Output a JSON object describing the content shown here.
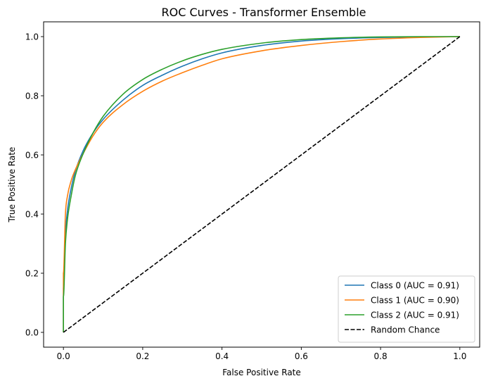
{
  "chart_data": {
    "type": "line",
    "title": "ROC Curves - Transformer Ensemble",
    "xlabel": "False Positive Rate",
    "ylabel": "True Positive Rate",
    "xlim": [
      -0.05,
      1.05
    ],
    "ylim": [
      -0.05,
      1.05
    ],
    "xticks": [
      0.0,
      0.2,
      0.4,
      0.6,
      0.8,
      1.0
    ],
    "yticks": [
      0.0,
      0.2,
      0.4,
      0.6,
      0.8,
      1.0
    ],
    "xtick_labels": [
      "0.0",
      "0.2",
      "0.4",
      "0.6",
      "0.8",
      "1.0"
    ],
    "ytick_labels": [
      "0.0",
      "0.2",
      "0.4",
      "0.6",
      "0.8",
      "1.0"
    ],
    "grid": false,
    "legend_position": "lower-right",
    "series": [
      {
        "name": "Class 0 (AUC = 0.91)",
        "color": "#1f77b4",
        "style": "solid",
        "x": [
          0.0,
          0.0,
          0.005,
          0.01,
          0.02,
          0.03,
          0.05,
          0.075,
          0.1,
          0.15,
          0.2,
          0.25,
          0.3,
          0.35,
          0.4,
          0.5,
          0.6,
          0.7,
          0.8,
          0.9,
          1.0
        ],
        "y": [
          0.0,
          0.15,
          0.33,
          0.41,
          0.49,
          0.545,
          0.615,
          0.675,
          0.72,
          0.785,
          0.835,
          0.87,
          0.9,
          0.925,
          0.945,
          0.97,
          0.985,
          0.993,
          0.997,
          0.999,
          1.0
        ]
      },
      {
        "name": "Class 1 (AUC = 0.90)",
        "color": "#ff7f0e",
        "style": "solid",
        "x": [
          0.0,
          0.0,
          0.005,
          0.01,
          0.02,
          0.03,
          0.05,
          0.075,
          0.1,
          0.15,
          0.2,
          0.25,
          0.3,
          0.35,
          0.4,
          0.5,
          0.6,
          0.7,
          0.8,
          0.9,
          1.0
        ],
        "y": [
          0.0,
          0.2,
          0.4,
          0.46,
          0.515,
          0.55,
          0.605,
          0.665,
          0.71,
          0.77,
          0.815,
          0.85,
          0.878,
          0.903,
          0.925,
          0.952,
          0.97,
          0.983,
          0.992,
          0.997,
          1.0
        ]
      },
      {
        "name": "Class 2 (AUC = 0.91)",
        "color": "#2ca02c",
        "style": "solid",
        "x": [
          0.0,
          0.0,
          0.005,
          0.01,
          0.02,
          0.03,
          0.05,
          0.075,
          0.1,
          0.15,
          0.2,
          0.25,
          0.3,
          0.35,
          0.4,
          0.5,
          0.6,
          0.7,
          0.8,
          0.9,
          1.0
        ],
        "y": [
          0.0,
          0.12,
          0.3,
          0.38,
          0.465,
          0.53,
          0.605,
          0.675,
          0.73,
          0.805,
          0.855,
          0.89,
          0.918,
          0.94,
          0.957,
          0.978,
          0.99,
          0.996,
          0.999,
          1.0,
          1.0
        ]
      },
      {
        "name": "Random Chance",
        "color": "#000000",
        "style": "dashed",
        "x": [
          0.0,
          1.0
        ],
        "y": [
          0.0,
          1.0
        ]
      }
    ]
  }
}
